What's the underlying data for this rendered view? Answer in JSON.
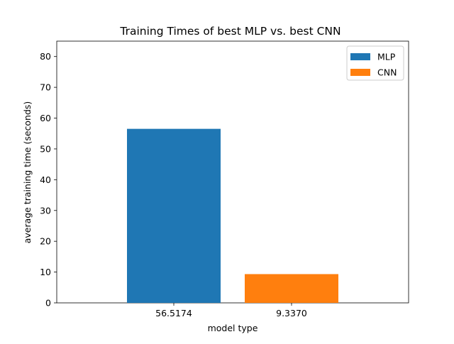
{
  "chart_data": {
    "type": "bar",
    "title": "Training Times of best MLP vs. best CNN",
    "xlabel": "model type",
    "ylabel": "average training time (seconds)",
    "categories": [
      "56.5174",
      "9.3370"
    ],
    "series": [
      {
        "name": "MLP",
        "values": [
          56.5174,
          null
        ],
        "color": "#1f77b4"
      },
      {
        "name": "CNN",
        "values": [
          null,
          9.337
        ],
        "color": "#ff7f0e"
      }
    ],
    "ylim": [
      0,
      85
    ],
    "yticks": [
      0,
      10,
      20,
      30,
      40,
      50,
      60,
      70,
      80
    ],
    "grid": false,
    "legend_position": "top-right"
  }
}
